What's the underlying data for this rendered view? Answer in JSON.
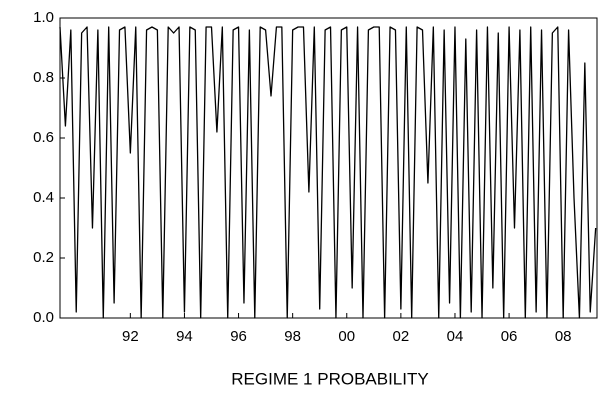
{
  "chart_data": {
    "type": "line",
    "title": "REGIME 1 PROBABILITY",
    "x": [
      1989.4,
      1989.6,
      1989.8,
      1990.0,
      1990.2,
      1990.4,
      1990.6,
      1990.8,
      1991.0,
      1991.2,
      1991.4,
      1991.6,
      1991.8,
      1992.0,
      1992.2,
      1992.4,
      1992.6,
      1992.8,
      1993.0,
      1993.2,
      1993.4,
      1993.6,
      1993.8,
      1994.0,
      1994.2,
      1994.4,
      1994.6,
      1994.8,
      1995.0,
      1995.2,
      1995.4,
      1995.6,
      1995.8,
      1996.0,
      1996.2,
      1996.4,
      1996.6,
      1996.8,
      1997.0,
      1997.2,
      1997.4,
      1997.6,
      1997.8,
      1998.0,
      1998.2,
      1998.4,
      1998.6,
      1998.8,
      1999.0,
      1999.2,
      1999.4,
      1999.6,
      1999.8,
      2000.0,
      2000.2,
      2000.4,
      2000.6,
      2000.8,
      2001.0,
      2001.2,
      2001.4,
      2001.6,
      2001.8,
      2002.0,
      2002.2,
      2002.4,
      2002.6,
      2002.8,
      2003.0,
      2003.2,
      2003.4,
      2003.6,
      2003.8,
      2004.0,
      2004.2,
      2004.4,
      2004.6,
      2004.8,
      2005.0,
      2005.2,
      2005.4,
      2005.6,
      2005.8,
      2006.0,
      2006.2,
      2006.4,
      2006.6,
      2006.8,
      2007.0,
      2007.2,
      2007.4,
      2007.6,
      2007.8,
      2008.0,
      2008.2,
      2008.4,
      2008.6,
      2008.8,
      2009.0,
      2009.2
    ],
    "series": [
      {
        "name": "REGIME 1 PROBABILITY",
        "color": "#000000",
        "values": [
          0.97,
          0.64,
          0.96,
          0.02,
          0.95,
          0.97,
          0.3,
          0.96,
          0.0,
          0.97,
          0.05,
          0.96,
          0.97,
          0.55,
          0.97,
          0.0,
          0.96,
          0.97,
          0.96,
          0.0,
          0.97,
          0.95,
          0.97,
          0.02,
          0.97,
          0.96,
          0.0,
          0.97,
          0.97,
          0.62,
          0.97,
          0.0,
          0.96,
          0.97,
          0.05,
          0.96,
          0.0,
          0.97,
          0.96,
          0.74,
          0.97,
          0.97,
          0.0,
          0.96,
          0.97,
          0.97,
          0.42,
          0.97,
          0.03,
          0.96,
          0.97,
          0.0,
          0.96,
          0.97,
          0.1,
          0.97,
          0.0,
          0.96,
          0.97,
          0.97,
          0.0,
          0.97,
          0.96,
          0.03,
          0.97,
          0.0,
          0.97,
          0.96,
          0.45,
          0.97,
          0.0,
          0.96,
          0.05,
          0.97,
          0.0,
          0.93,
          0.02,
          0.96,
          0.0,
          0.97,
          0.1,
          0.95,
          0.0,
          0.97,
          0.3,
          0.96,
          0.0,
          0.97,
          0.02,
          0.96,
          0.0,
          0.95,
          0.97,
          0.0,
          0.96,
          0.4,
          0.0,
          0.85,
          0.02,
          0.3
        ]
      }
    ],
    "xlim": [
      1989.4,
      2009.25
    ],
    "xticks": [
      {
        "value": 1992,
        "label": "92"
      },
      {
        "value": 1994,
        "label": "94"
      },
      {
        "value": 1996,
        "label": "96"
      },
      {
        "value": 1998,
        "label": "98"
      },
      {
        "value": 2000,
        "label": "00"
      },
      {
        "value": 2002,
        "label": "02"
      },
      {
        "value": 2004,
        "label": "04"
      },
      {
        "value": 2006,
        "label": "06"
      },
      {
        "value": 2008,
        "label": "08"
      }
    ],
    "ylim": [
      0,
      1
    ],
    "yticks": [
      {
        "value": 0,
        "label": "0.0"
      },
      {
        "value": 0.2,
        "label": "0.2"
      },
      {
        "value": 0.4,
        "label": "0.4"
      },
      {
        "value": 0.6,
        "label": "0.6"
      },
      {
        "value": 0.8,
        "label": "0.8"
      },
      {
        "value": 1,
        "label": "1.0"
      }
    ],
    "grid": false
  }
}
